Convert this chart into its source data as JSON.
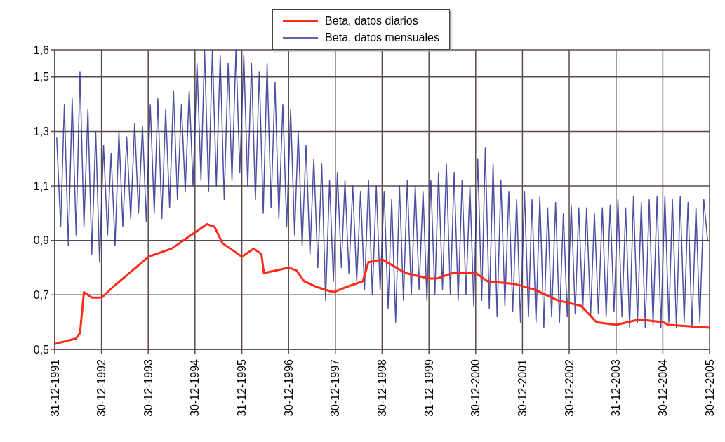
{
  "chart_data": {
    "type": "line",
    "xlim": [
      "1991-12-31",
      "2005-12-30"
    ],
    "ylim": [
      0.5,
      1.6
    ],
    "xticks": [
      {
        "value": "1991-12-31",
        "label": "31-12-1991"
      },
      {
        "value": "1992-12-30",
        "label": "30-12-1992"
      },
      {
        "value": "1993-12-30",
        "label": "30-12-1993"
      },
      {
        "value": "1994-12-30",
        "label": "30-12-1994"
      },
      {
        "value": "1995-12-31",
        "label": "31-12-1995"
      },
      {
        "value": "1996-12-30",
        "label": "30-12-1996"
      },
      {
        "value": "1997-12-30",
        "label": "30-12-1997"
      },
      {
        "value": "1998-12-30",
        "label": "30-12-1998"
      },
      {
        "value": "1999-12-31",
        "label": "31-12-1999"
      },
      {
        "value": "2000-12-30",
        "label": "30-12-2000"
      },
      {
        "value": "2001-12-30",
        "label": "30-12-2001"
      },
      {
        "value": "2002-12-30",
        "label": "30-12-2002"
      },
      {
        "value": "2003-12-31",
        "label": "31-12-2003"
      },
      {
        "value": "2004-12-30",
        "label": "30-12-2004"
      },
      {
        "value": "2005-12-30",
        "label": "30-12-2005"
      }
    ],
    "yticks": [
      {
        "value": 0.5,
        "label": "0,5"
      },
      {
        "value": 0.7,
        "label": "0,7"
      },
      {
        "value": 0.9,
        "label": "0,9"
      },
      {
        "value": 1.1,
        "label": "1,1"
      },
      {
        "value": 1.3,
        "label": "1,3"
      },
      {
        "value": 1.5,
        "label": "1,5"
      },
      {
        "value": 1.6,
        "label": "1,6"
      }
    ],
    "grid": true,
    "legend": "top",
    "marker": "none",
    "line_style": "solid",
    "series": [
      {
        "name": "Beta, datos diarios",
        "color": "#ff2a1a",
        "x": [
          "1991-12-31",
          "1992-06-15",
          "1992-07-15",
          "1992-08-15",
          "1992-10-15",
          "1993-01-01",
          "1993-04-01",
          "1994-01-01",
          "1994-07-01",
          "1995-01-01",
          "1995-04-01",
          "1995-06-01",
          "1995-08-01",
          "1996-01-01",
          "1996-04-01",
          "1996-06-01",
          "1996-06-20",
          "1997-01-01",
          "1997-03-01",
          "1997-05-01",
          "1997-08-01",
          "1997-12-15",
          "1998-04-01",
          "1998-08-01",
          "1998-09-15",
          "1999-01-01",
          "1999-07-01",
          "2000-01-01",
          "2000-03-01",
          "2000-07-01",
          "2001-01-01",
          "2001-04-01",
          "2001-11-01",
          "2002-04-01",
          "2002-10-01",
          "2003-04-01",
          "2003-08-01",
          "2004-01-01",
          "2004-07-01",
          "2005-01-01",
          "2005-02-15",
          "2005-12-30"
        ],
        "values": [
          0.52,
          0.54,
          0.56,
          0.71,
          0.69,
          0.69,
          0.73,
          0.84,
          0.87,
          0.93,
          0.96,
          0.95,
          0.89,
          0.84,
          0.87,
          0.85,
          0.78,
          0.8,
          0.79,
          0.75,
          0.73,
          0.71,
          0.73,
          0.75,
          0.82,
          0.83,
          0.78,
          0.76,
          0.76,
          0.78,
          0.78,
          0.75,
          0.74,
          0.72,
          0.68,
          0.66,
          0.6,
          0.59,
          0.61,
          0.6,
          0.59,
          0.58
        ]
      },
      {
        "name": "Beta, datos mensuales",
        "color": "#2e3192",
        "x": [
          "1992-01",
          "1992-02",
          "1992-03",
          "1992-04",
          "1992-05",
          "1992-06",
          "1992-07",
          "1992-08",
          "1992-09",
          "1992-10",
          "1992-11",
          "1992-12",
          "1993-01",
          "1993-02",
          "1993-03",
          "1993-04",
          "1993-05",
          "1993-06",
          "1993-07",
          "1993-08",
          "1993-09",
          "1993-10",
          "1993-11",
          "1993-12",
          "1994-01",
          "1994-02",
          "1994-03",
          "1994-04",
          "1994-05",
          "1994-06",
          "1994-07",
          "1994-08",
          "1994-09",
          "1994-10",
          "1994-11",
          "1994-12",
          "1995-01",
          "1995-02",
          "1995-03",
          "1995-04",
          "1995-05",
          "1995-06",
          "1995-07",
          "1995-08",
          "1995-09",
          "1995-10",
          "1995-11",
          "1995-12",
          "1996-01",
          "1996-02",
          "1996-03",
          "1996-04",
          "1996-05",
          "1996-06",
          "1996-07",
          "1996-08",
          "1996-09",
          "1996-10",
          "1996-11",
          "1996-12",
          "1997-01",
          "1997-02",
          "1997-03",
          "1997-04",
          "1997-05",
          "1997-06",
          "1997-07",
          "1997-08",
          "1997-09",
          "1997-10",
          "1997-11",
          "1997-12",
          "1998-01",
          "1998-02",
          "1998-03",
          "1998-04",
          "1998-05",
          "1998-06",
          "1998-07",
          "1998-08",
          "1998-09",
          "1998-10",
          "1998-11",
          "1998-12",
          "1999-01",
          "1999-02",
          "1999-03",
          "1999-04",
          "1999-05",
          "1999-06",
          "1999-07",
          "1999-08",
          "1999-09",
          "1999-10",
          "1999-11",
          "1999-12",
          "2000-01",
          "2000-02",
          "2000-03",
          "2000-04",
          "2000-05",
          "2000-06",
          "2000-07",
          "2000-08",
          "2000-09",
          "2000-10",
          "2000-11",
          "2000-12",
          "2001-01",
          "2001-02",
          "2001-03",
          "2001-04",
          "2001-05",
          "2001-06",
          "2001-07",
          "2001-08",
          "2001-09",
          "2001-10",
          "2001-11",
          "2001-12",
          "2002-01",
          "2002-02",
          "2002-03",
          "2002-04",
          "2002-05",
          "2002-06",
          "2002-07",
          "2002-08",
          "2002-09",
          "2002-10",
          "2002-11",
          "2002-12",
          "2003-01",
          "2003-02",
          "2003-03",
          "2003-04",
          "2003-05",
          "2003-06",
          "2003-07",
          "2003-08",
          "2003-09",
          "2003-10",
          "2003-11",
          "2003-12",
          "2004-01",
          "2004-02",
          "2004-03",
          "2004-04",
          "2004-05",
          "2004-06",
          "2004-07",
          "2004-08",
          "2004-09",
          "2004-10",
          "2004-11",
          "2004-12",
          "2005-01",
          "2005-02",
          "2005-03",
          "2005-04",
          "2005-05",
          "2005-06",
          "2005-07",
          "2005-08",
          "2005-09",
          "2005-10",
          "2005-11",
          "2005-12"
        ],
        "values": [
          1.28,
          0.95,
          1.4,
          0.88,
          1.42,
          0.92,
          1.52,
          0.95,
          1.38,
          0.85,
          1.3,
          0.82,
          1.25,
          0.92,
          1.22,
          0.88,
          1.3,
          0.95,
          1.28,
          0.98,
          1.33,
          1.0,
          1.32,
          0.97,
          1.4,
          1.0,
          1.42,
          0.98,
          1.38,
          1.02,
          1.45,
          1.05,
          1.4,
          1.08,
          1.45,
          1.1,
          1.55,
          1.12,
          1.6,
          1.08,
          1.6,
          1.1,
          1.58,
          1.05,
          1.55,
          1.12,
          1.6,
          1.15,
          1.58,
          1.1,
          1.55,
          1.05,
          1.52,
          1.0,
          1.55,
          1.02,
          1.48,
          0.98,
          1.4,
          0.95,
          1.38,
          0.92,
          1.3,
          0.88,
          1.25,
          0.85,
          1.2,
          0.8,
          1.18,
          0.68,
          1.12,
          0.75,
          1.15,
          0.8,
          1.12,
          0.78,
          1.1,
          0.75,
          1.08,
          0.72,
          1.12,
          0.7,
          1.1,
          0.72,
          1.08,
          0.65,
          1.05,
          0.6,
          1.1,
          0.68,
          1.12,
          0.7,
          1.1,
          0.72,
          1.08,
          0.68,
          1.12,
          0.7,
          1.15,
          0.72,
          1.18,
          0.7,
          1.15,
          0.68,
          1.12,
          0.7,
          1.1,
          0.66,
          1.2,
          0.68,
          1.24,
          0.65,
          1.18,
          0.62,
          1.12,
          0.66,
          1.08,
          0.64,
          1.05,
          0.6,
          1.08,
          0.62,
          1.05,
          0.6,
          1.06,
          0.58,
          1.02,
          0.62,
          1.04,
          0.6,
          1.0,
          0.62,
          1.03,
          0.63,
          1.02,
          0.64,
          1.02,
          0.62,
          1.0,
          0.63,
          1.02,
          0.62,
          1.03,
          0.64,
          1.05,
          0.62,
          1.02,
          0.58,
          1.06,
          0.6,
          1.04,
          0.58,
          1.05,
          0.59,
          1.06,
          0.58,
          1.06,
          0.6,
          1.05,
          0.58,
          1.06,
          0.6,
          1.04,
          0.58,
          1.02,
          0.6,
          1.05,
          0.9
        ]
      }
    ]
  }
}
